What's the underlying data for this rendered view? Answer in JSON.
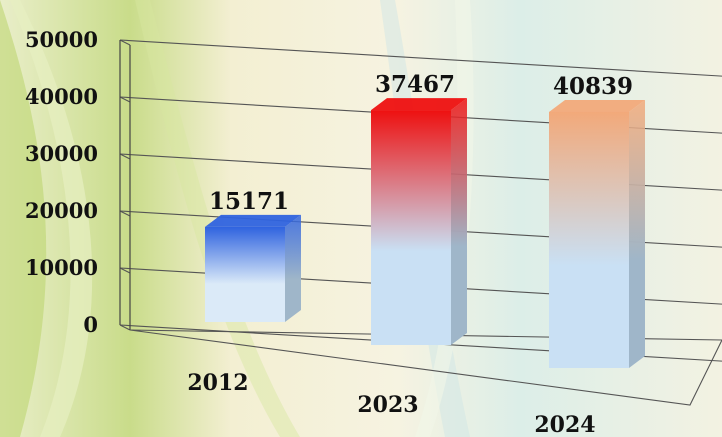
{
  "chart_data": {
    "type": "bar",
    "categories": [
      "2012",
      "2023",
      "2024"
    ],
    "values": [
      15171,
      37467,
      40839
    ],
    "data_labels": [
      "15171",
      "37467",
      "40839"
    ],
    "yticks": [
      "0",
      "10000",
      "20000",
      "30000",
      "40000",
      "50000"
    ],
    "ylim": [
      0,
      50000
    ],
    "grid": true,
    "style": "3d",
    "title": "",
    "xlabel": "",
    "ylabel": "",
    "colors": {
      "2012": {
        "top": "#2f63df",
        "bottom": "#dbeaf8"
      },
      "2023": {
        "top": "#ee1010",
        "bottom": "#c9e0f4"
      },
      "2024": {
        "top": "#f2a97a",
        "bottom": "#c9e0f4"
      }
    }
  }
}
